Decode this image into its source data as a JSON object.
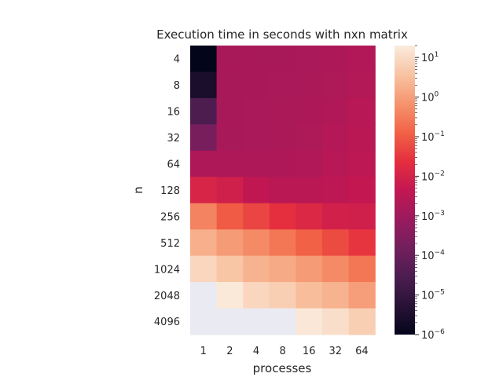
{
  "chart_data": {
    "type": "heatmap",
    "title": "Execution time in seconds with nxn matrix",
    "xlabel": "processes",
    "ylabel": "n",
    "x_categories": [
      "1",
      "2",
      "4",
      "8",
      "16",
      "32",
      "64"
    ],
    "y_categories": [
      "4",
      "8",
      "16",
      "32",
      "64",
      "128",
      "256",
      "512",
      "1024",
      "2048",
      "4096"
    ],
    "scale": "log",
    "colormap": "rocket",
    "missing_color": "#eaeaf2",
    "colorbar": {
      "range": [
        1e-06,
        20
      ],
      "ticks": [
        {
          "value": 1e-06,
          "label": "10",
          "exp": "−6"
        },
        {
          "value": 1e-05,
          "label": "10",
          "exp": "−5"
        },
        {
          "value": 0.0001,
          "label": "10",
          "exp": "−4"
        },
        {
          "value": 0.001,
          "label": "10",
          "exp": "−3"
        },
        {
          "value": 0.01,
          "label": "10",
          "exp": "−2"
        },
        {
          "value": 0.1,
          "label": "10",
          "exp": "−1"
        },
        {
          "value": 1,
          "label": "10",
          "exp": "0"
        },
        {
          "value": 10,
          "label": "10",
          "exp": "1"
        }
      ]
    },
    "values": [
      [
        1e-06,
        0.0015,
        0.0015,
        0.0015,
        0.0016,
        0.0018,
        0.0022
      ],
      [
        3e-06,
        0.0015,
        0.0015,
        0.0016,
        0.0017,
        0.0019,
        0.0023
      ],
      [
        3e-05,
        0.0015,
        0.0016,
        0.0017,
        0.0018,
        0.0021,
        0.0028
      ],
      [
        0.0002,
        0.0015,
        0.0016,
        0.0017,
        0.0019,
        0.0025,
        0.003
      ],
      [
        0.002,
        0.002,
        0.002,
        0.002,
        0.0021,
        0.0028,
        0.0035
      ],
      [
        0.012,
        0.008,
        0.004,
        0.003,
        0.003,
        0.0035,
        0.0045
      ],
      [
        0.4,
        0.1,
        0.05,
        0.025,
        0.015,
        0.009,
        0.008
      ],
      [
        1.8,
        0.9,
        0.5,
        0.25,
        0.12,
        0.06,
        0.03
      ],
      [
        8,
        4,
        2,
        1.5,
        0.9,
        0.5,
        0.25
      ],
      [
        null,
        18,
        8,
        6,
        3,
        2,
        1
      ],
      [
        null,
        null,
        null,
        null,
        17,
        12,
        6
      ]
    ]
  }
}
